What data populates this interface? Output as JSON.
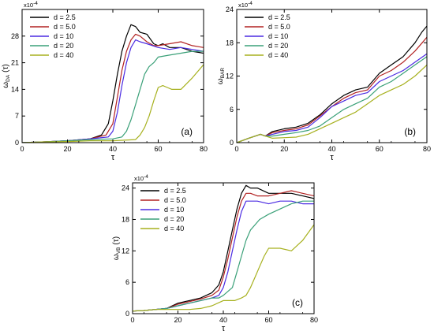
{
  "colors": {
    "d_2_5": "#000000",
    "d_5_0": "#b22222",
    "d_10": "#4b2be2",
    "d_20": "#3aa078",
    "d_40": "#a7b11f"
  },
  "chart_data": [
    {
      "type": "line",
      "panel_label": "(a)",
      "xlabel": "τ",
      "ylabel": "ω",
      "ylabel_sub": "DA",
      "ylabel_suffix": "(τ)",
      "exponent": "x10",
      "exponent_power": "-4",
      "xlim": [
        0,
        80
      ],
      "ylim": [
        0,
        35
      ],
      "xticks": [
        0,
        20,
        40,
        60,
        80
      ],
      "yticks": [
        0,
        7,
        14,
        21,
        28
      ],
      "legend_position": "top-left",
      "series": [
        {
          "name": "d = 2.5",
          "color_key": "d_2_5",
          "x": [
            0,
            10,
            20,
            30,
            35,
            38,
            40,
            42,
            44,
            46,
            48,
            50,
            52,
            55,
            58,
            60,
            62,
            65,
            70,
            75,
            80
          ],
          "y": [
            0,
            0.2,
            0.5,
            1,
            2,
            5,
            11,
            18,
            24,
            28,
            31,
            30.5,
            29,
            28.5,
            26,
            25.5,
            26,
            25,
            25,
            24,
            23.5
          ]
        },
        {
          "name": "d = 5.0",
          "color_key": "d_5_0",
          "x": [
            0,
            10,
            20,
            30,
            37,
            40,
            42,
            44,
            46,
            48,
            50,
            52,
            55,
            58,
            60,
            65,
            70,
            75,
            80
          ],
          "y": [
            0,
            0.2,
            0.5,
            1,
            2,
            5,
            12,
            19,
            24,
            27,
            28.5,
            28,
            26.5,
            25.5,
            25.5,
            26,
            26.5,
            25.5,
            25
          ]
        },
        {
          "name": "d = 10",
          "color_key": "d_10",
          "x": [
            0,
            10,
            20,
            30,
            38,
            40,
            42,
            44,
            46,
            48,
            50,
            52,
            55,
            60,
            65,
            70,
            75,
            80
          ],
          "y": [
            0,
            0.2,
            0.5,
            1,
            1.5,
            3,
            8,
            15,
            21,
            25,
            27,
            26.5,
            26,
            25,
            24.5,
            25,
            24.5,
            24
          ]
        },
        {
          "name": "d = 20",
          "color_key": "d_20",
          "x": [
            0,
            10,
            20,
            30,
            40,
            44,
            46,
            48,
            50,
            52,
            54,
            56,
            58,
            60,
            65,
            70,
            75,
            80
          ],
          "y": [
            0,
            0.2,
            0.5,
            0.8,
            1,
            1.5,
            3,
            6,
            10,
            14,
            18,
            20,
            21,
            22.5,
            23,
            23.5,
            24,
            24
          ]
        },
        {
          "name": "d = 40",
          "color_key": "d_40",
          "x": [
            0,
            10,
            20,
            30,
            40,
            50,
            52,
            54,
            56,
            58,
            60,
            62,
            64,
            66,
            70,
            75,
            80
          ],
          "y": [
            0,
            0.2,
            0.3,
            0.5,
            0.5,
            0.8,
            2,
            4,
            7,
            11,
            14.5,
            15,
            14.5,
            14,
            14,
            17,
            20.5
          ]
        }
      ]
    },
    {
      "type": "line",
      "panel_label": "(b)",
      "xlabel": "τ",
      "ylabel": "ω",
      "ylabel_sub": "BAR",
      "ylabel_suffix": "",
      "exponent": "x10",
      "exponent_power": "-4",
      "xlim": [
        0,
        80
      ],
      "ylim": [
        0,
        24
      ],
      "xticks": [
        0,
        20,
        40,
        60,
        80
      ],
      "yticks": [
        0,
        6,
        12,
        18,
        24
      ],
      "legend_position": "top-left",
      "series": [
        {
          "name": "d = 2.5",
          "color_key": "d_2_5",
          "x": [
            0,
            5,
            10,
            12,
            15,
            20,
            25,
            30,
            35,
            40,
            45,
            50,
            55,
            60,
            65,
            70,
            75,
            78,
            80
          ],
          "y": [
            0,
            0.8,
            1.5,
            1.2,
            2,
            2.5,
            2.8,
            3.5,
            5,
            7,
            8.5,
            9.5,
            10,
            12.5,
            14,
            15.5,
            18,
            20,
            21
          ]
        },
        {
          "name": "d = 5.0",
          "color_key": "d_5_0",
          "x": [
            0,
            5,
            10,
            12,
            15,
            20,
            25,
            30,
            35,
            40,
            45,
            50,
            55,
            60,
            65,
            70,
            75,
            78,
            80
          ],
          "y": [
            0,
            0.8,
            1.5,
            1.2,
            1.8,
            2.2,
            2.5,
            3.2,
            4.8,
            6.5,
            8,
            9,
            9.5,
            12,
            13,
            14.5,
            16.5,
            18,
            19
          ]
        },
        {
          "name": "d = 10",
          "color_key": "d_10",
          "x": [
            0,
            5,
            10,
            12,
            15,
            20,
            25,
            30,
            35,
            40,
            45,
            50,
            55,
            60,
            65,
            70,
            75,
            80
          ],
          "y": [
            0,
            0.8,
            1.5,
            1.2,
            1.5,
            2,
            2.2,
            2.8,
            4.5,
            6.5,
            7.5,
            8.5,
            9,
            11,
            12,
            13,
            14.5,
            16
          ]
        },
        {
          "name": "d = 20",
          "color_key": "d_20",
          "x": [
            0,
            5,
            10,
            12,
            15,
            20,
            25,
            30,
            35,
            40,
            45,
            50,
            55,
            60,
            65,
            70,
            75,
            80
          ],
          "y": [
            0,
            0.8,
            1.5,
            1.2,
            1.2,
            1.5,
            1.8,
            2.2,
            3,
            4.5,
            6,
            7,
            8,
            10,
            11,
            12.5,
            14,
            15.5
          ]
        },
        {
          "name": "d = 40",
          "color_key": "d_40",
          "x": [
            0,
            5,
            10,
            12,
            15,
            20,
            25,
            30,
            35,
            40,
            45,
            50,
            55,
            60,
            65,
            70,
            75,
            80
          ],
          "y": [
            0,
            0.8,
            1.5,
            1.2,
            0.8,
            0.9,
            1,
            1.5,
            2.5,
            3.5,
            4.5,
            5.5,
            7,
            8.5,
            9.5,
            10.5,
            12,
            14
          ]
        }
      ]
    },
    {
      "type": "line",
      "panel_label": "(c)",
      "xlabel": "τ",
      "ylabel": "ω",
      "ylabel_sub": "VB",
      "ylabel_suffix": "(τ)",
      "exponent": "x10",
      "exponent_power": "-4",
      "xlim": [
        0,
        80
      ],
      "ylim": [
        0,
        25
      ],
      "xticks": [
        0,
        20,
        40,
        60,
        80
      ],
      "yticks": [
        0,
        6,
        12,
        18,
        24
      ],
      "legend_position": "top-left",
      "series": [
        {
          "name": "d = 2.5",
          "color_key": "d_2_5",
          "x": [
            0,
            5,
            10,
            15,
            20,
            25,
            30,
            35,
            38,
            40,
            42,
            44,
            46,
            48,
            50,
            52,
            55,
            60,
            65,
            70,
            75,
            80
          ],
          "y": [
            0.5,
            0.6,
            0.8,
            1,
            2,
            2.5,
            3,
            4,
            5.5,
            8,
            12,
            16,
            20,
            23,
            24.5,
            24,
            24,
            23,
            23,
            23,
            22.5,
            22
          ]
        },
        {
          "name": "d = 5.0",
          "color_key": "d_5_0",
          "x": [
            0,
            5,
            10,
            15,
            20,
            25,
            30,
            35,
            38,
            40,
            42,
            44,
            46,
            48,
            50,
            52,
            55,
            60,
            65,
            70,
            75,
            80
          ],
          "y": [
            0.5,
            0.6,
            0.8,
            1,
            1.8,
            2.3,
            2.8,
            3.5,
            4.5,
            7,
            10.5,
            14.5,
            18.5,
            21.5,
            23,
            23,
            22.5,
            22.5,
            23,
            23.5,
            23,
            22.5
          ]
        },
        {
          "name": "d = 10",
          "color_key": "d_10",
          "x": [
            0,
            5,
            10,
            15,
            20,
            25,
            30,
            35,
            38,
            40,
            42,
            44,
            46,
            48,
            50,
            52,
            55,
            60,
            65,
            70,
            75,
            80
          ],
          "y": [
            0.5,
            0.6,
            0.8,
            1,
            1.5,
            2,
            2.5,
            3,
            3.5,
            5,
            8,
            12,
            16,
            19.5,
            21.5,
            21.5,
            21.5,
            21,
            21.5,
            21.5,
            21,
            21
          ]
        },
        {
          "name": "d = 20",
          "color_key": "d_20",
          "x": [
            0,
            5,
            10,
            15,
            20,
            25,
            30,
            35,
            38,
            40,
            44,
            46,
            48,
            50,
            52,
            54,
            56,
            60,
            65,
            70,
            75,
            80
          ],
          "y": [
            0.5,
            0.6,
            0.8,
            1,
            1.5,
            2,
            2.5,
            3,
            3,
            3.5,
            5,
            8,
            11,
            14,
            16,
            17,
            18,
            19,
            20,
            21,
            21.5,
            21.5
          ]
        },
        {
          "name": "d = 40",
          "color_key": "d_40",
          "x": [
            0,
            5,
            10,
            15,
            20,
            25,
            30,
            35,
            40,
            45,
            48,
            50,
            52,
            54,
            56,
            58,
            60,
            62,
            65,
            70,
            75,
            80
          ],
          "y": [
            0.5,
            0.6,
            0.8,
            0.8,
            0.8,
            0.8,
            1,
            1.5,
            2.5,
            2.5,
            3,
            3.5,
            5,
            7,
            9,
            11,
            12.5,
            12.5,
            12.5,
            12,
            14,
            17
          ]
        }
      ]
    }
  ]
}
